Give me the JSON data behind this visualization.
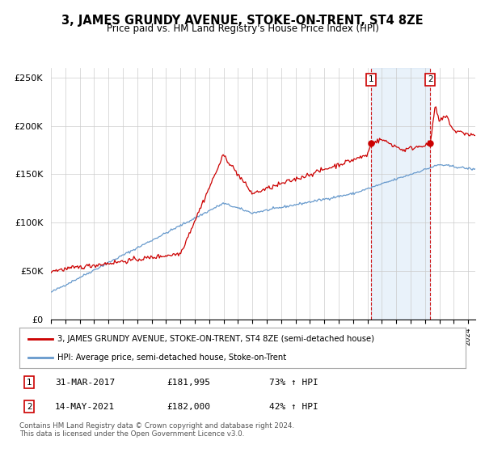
{
  "title": "3, JAMES GRUNDY AVENUE, STOKE-ON-TRENT, ST4 8ZE",
  "subtitle": "Price paid vs. HM Land Registry's House Price Index (HPI)",
  "legend_line1": "3, JAMES GRUNDY AVENUE, STOKE-ON-TRENT, ST4 8ZE (semi-detached house)",
  "legend_line2": "HPI: Average price, semi-detached house, Stoke-on-Trent",
  "transaction1_date": "31-MAR-2017",
  "transaction1_price": "£181,995",
  "transaction1_hpi": "73% ↑ HPI",
  "transaction2_date": "14-MAY-2021",
  "transaction2_price": "£182,000",
  "transaction2_hpi": "42% ↑ HPI",
  "footer": "Contains HM Land Registry data © Crown copyright and database right 2024.\nThis data is licensed under the Open Government Licence v3.0.",
  "red_color": "#cc0000",
  "blue_color": "#6699cc",
  "shaded_color": "#ddeeff",
  "background_color": "#ffffff",
  "grid_color": "#cccccc"
}
